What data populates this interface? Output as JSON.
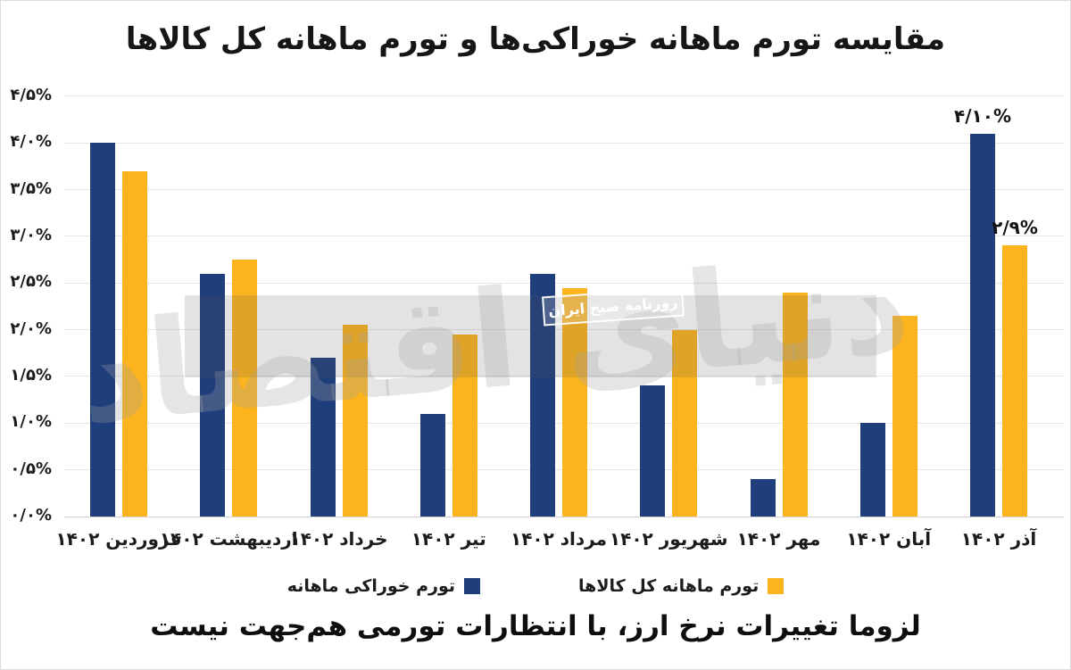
{
  "title": "مقایسه تورم ماهانه خوراکی‌ها و تورم ماهانه کل کالاها",
  "caption": "لزوما تغییرات نرخ ارز، با انتظارات تورمی هم‌جهت نیست",
  "watermark": {
    "logo_text": "دنیای اقتصاد",
    "badge_text": "روزنامه صبح ایران"
  },
  "colors": {
    "food_series": "#1f3e7c",
    "goods_series": "#fbb31e",
    "watermark_band": "#d9d9d9"
  },
  "chart_data": {
    "type": "bar",
    "title": "مقایسه تورم ماهانه خوراکی‌ها و تورم ماهانه کل کالاها",
    "categories": [
      "فروردین ۱۴۰۲",
      "اردیبهشت ۱۴۰۲",
      "خرداد ۱۴۰۲",
      "تیر ۱۴۰۲",
      "مرداد ۱۴۰۲",
      "شهریور ۱۴۰۲",
      "مهر ۱۴۰۲",
      "آبان ۱۴۰۲",
      "آذر ۱۴۰۲"
    ],
    "series": [
      {
        "name": "تورم خوراکی ماهانه",
        "color": "#1f3e7c",
        "values": [
          4.0,
          2.6,
          1.7,
          1.1,
          2.6,
          1.4,
          0.4,
          1.0,
          4.1
        ]
      },
      {
        "name": "تورم ماهانه کل کالاها",
        "color": "#fbb31e",
        "values": [
          3.7,
          2.75,
          2.05,
          1.95,
          2.45,
          2.0,
          2.4,
          2.15,
          2.9
        ]
      }
    ],
    "y_ticks": [
      "۰/۰%",
      "۰/۵%",
      "۱/۰%",
      "۱/۵%",
      "۲/۰%",
      "۲/۵%",
      "۳/۰%",
      "۳/۵%",
      "۴/۰%",
      "۴/۵%"
    ],
    "ylim": [
      0,
      4.5
    ],
    "grid": true,
    "legend_position": "bottom",
    "point_labels": [
      {
        "series": 0,
        "index": 8,
        "text": "۴/۱۰%"
      },
      {
        "series": 1,
        "index": 8,
        "text": "۲/۹%"
      }
    ]
  }
}
